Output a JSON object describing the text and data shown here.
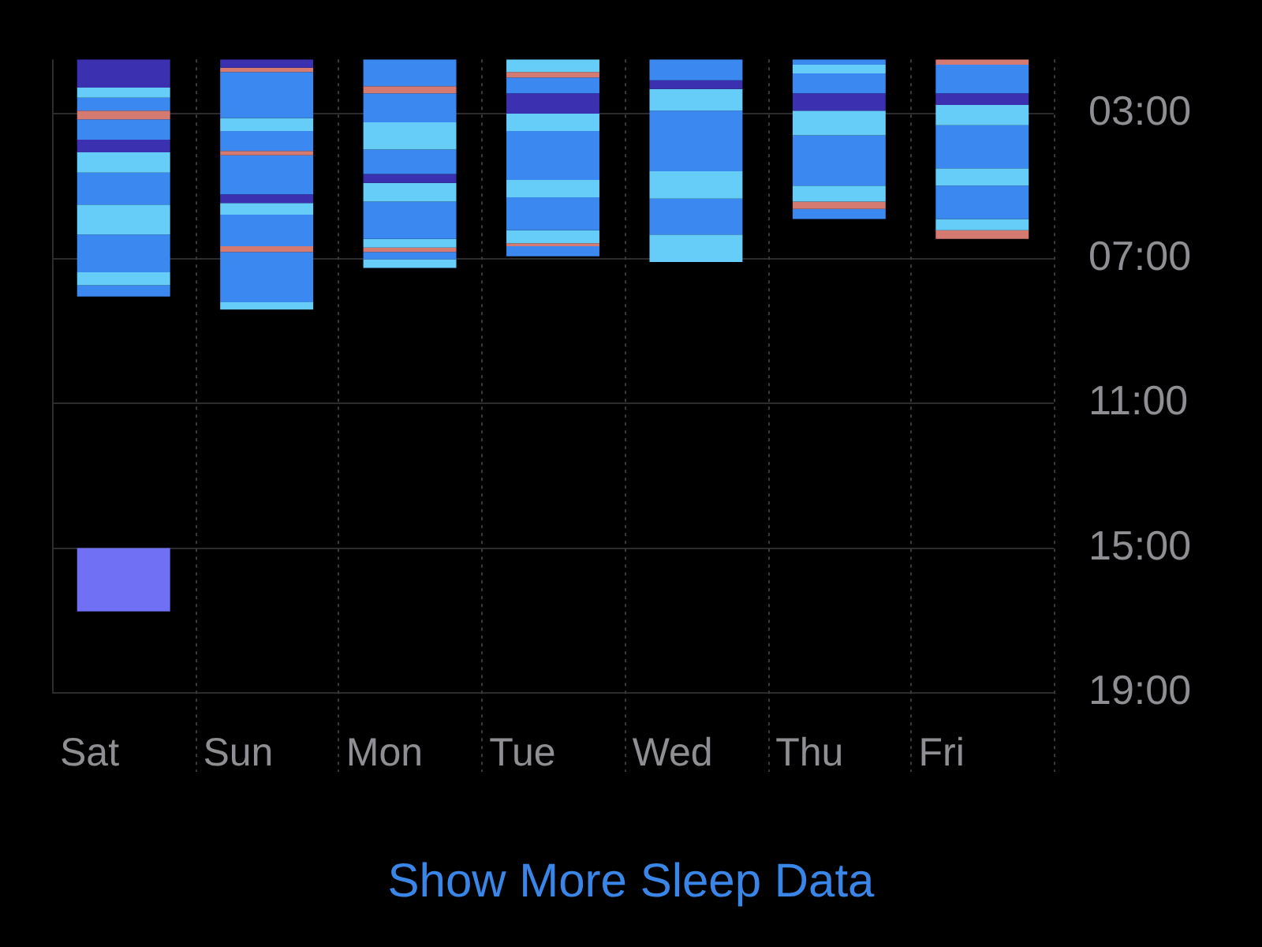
{
  "chart_data": {
    "type": "bar",
    "categories": [
      "Sat",
      "Sun",
      "Mon",
      "Tue",
      "Wed",
      "Thu",
      "Fri"
    ],
    "series": [
      {
        "base": [
          1.5,
          1.5,
          1.5,
          1.5,
          1.5,
          1.5,
          1.5
        ],
        "values": [
          0.78,
          0.23,
          0.74,
          0.35,
          0.58,
          0.15,
          0.15
        ],
        "colors": [
          "#3a30b0",
          "#3a30b0",
          "#3b88f0",
          "#66ccf8",
          "#3b88f0",
          "#3b88f0",
          "#d57a70"
        ]
      },
      {
        "base": [
          2.28,
          1.73,
          2.24,
          1.85,
          2.08,
          1.65,
          1.65
        ],
        "values": [
          0.28,
          0.12,
          0.2,
          0.15,
          0.24,
          0.24,
          0.79
        ],
        "colors": [
          "#66ccf8",
          "#d57a70",
          "#d57a70",
          "#d57a70",
          "#3a30b0",
          "#66ccf8",
          "#3b88f0"
        ]
      },
      {
        "base": [
          2.56,
          1.85,
          2.44,
          2.0,
          2.32,
          1.89,
          2.44
        ],
        "values": [
          0.36,
          1.27,
          0.8,
          0.44,
          0.6,
          0.55,
          0.32
        ],
        "colors": [
          "#3b88f0",
          "#3b88f0",
          "#3b88f0",
          "#3b88f0",
          "#66ccf8",
          "#3b88f0",
          "#3a30b0"
        ]
      },
      {
        "base": [
          2.92,
          3.12,
          3.24,
          2.44,
          2.92,
          2.44,
          2.76
        ],
        "values": [
          0.24,
          0.36,
          0.75,
          0.56,
          1.67,
          0.48,
          0.56
        ],
        "colors": [
          "#d57a70",
          "#66ccf8",
          "#66ccf8",
          "#3a30b0",
          "#3b88f0",
          "#3a30b0",
          "#66ccf8"
        ]
      },
      {
        "base": [
          3.16,
          3.48,
          3.99,
          3.0,
          4.59,
          2.92,
          3.32
        ],
        "values": [
          0.56,
          0.55,
          0.68,
          0.48,
          0.76,
          0.68,
          1.19
        ],
        "colors": [
          "#3b88f0",
          "#3b88f0",
          "#3b88f0",
          "#66ccf8",
          "#66ccf8",
          "#66ccf8",
          "#3b88f0"
        ]
      },
      {
        "base": [
          3.72,
          4.03,
          4.67,
          3.48,
          5.35,
          3.6,
          4.51
        ],
        "values": [
          0.35,
          0.12,
          0.24,
          1.35,
          0.99,
          1.39,
          0.48
        ],
        "colors": [
          "#3a30b0",
          "#d57a70",
          "#3a30b0",
          "#3b88f0",
          "#3b88f0",
          "#3b88f0",
          "#66ccf8"
        ]
      },
      {
        "base": [
          4.07,
          4.15,
          4.91,
          4.83,
          6.34,
          4.99,
          4.99
        ],
        "values": [
          0.56,
          1.08,
          0.52,
          0.48,
          0.76,
          0.44,
          0.92
        ],
        "colors": [
          "#66ccf8",
          "#3b88f0",
          "#66ccf8",
          "#66ccf8",
          "#66ccf8",
          "#66ccf8",
          "#3b88f0"
        ]
      },
      {
        "base": [
          4.63,
          5.23,
          5.43,
          5.31,
          null,
          5.43,
          5.91
        ],
        "values": [
          0.88,
          0.24,
          1.03,
          0.91,
          null,
          0.2,
          0.31
        ],
        "colors": [
          "#3b88f0",
          "#3a30b0",
          "#3b88f0",
          "#3b88f0",
          null,
          "#d57a70",
          "#66ccf8"
        ]
      },
      {
        "base": [
          5.51,
          5.47,
          6.46,
          6.22,
          null,
          5.63,
          6.22
        ],
        "values": [
          0.83,
          0.32,
          0.24,
          0.36,
          null,
          0.28,
          0.24
        ],
        "colors": [
          "#66ccf8",
          "#66ccf8",
          "#66ccf8",
          "#66ccf8",
          null,
          "#3b88f0",
          "#d57a70"
        ]
      },
      {
        "base": [
          6.34,
          5.79,
          6.7,
          6.58,
          null,
          null,
          null
        ],
        "values": [
          1.04,
          0.87,
          0.12,
          0.08,
          null,
          null,
          null
        ],
        "colors": [
          "#3b88f0",
          "#3b88f0",
          "#d57a70",
          "#d57a70",
          null,
          null,
          null
        ]
      },
      {
        "base": [
          7.38,
          6.66,
          6.82,
          6.66,
          null,
          null,
          null
        ],
        "values": [
          0.36,
          0.16,
          0.2,
          0.28,
          null,
          null,
          null
        ],
        "colors": [
          "#66ccf8",
          "#d57a70",
          "#3b88f0",
          "#3b88f0",
          null,
          null,
          null
        ]
      },
      {
        "base": [
          7.74,
          6.82,
          7.02,
          null,
          null,
          null,
          null
        ],
        "values": [
          0.31,
          1.39,
          0.24,
          null,
          null,
          null,
          null
        ],
        "colors": [
          "#3b88f0",
          "#3b88f0",
          "#66ccf8",
          null,
          null,
          null,
          null
        ]
      },
      {
        "base": [
          15.0,
          8.21,
          null,
          null,
          null,
          null,
          null
        ],
        "values": [
          1.75,
          0.2,
          null,
          null,
          null,
          null,
          null
        ],
        "colors": [
          "#7070f4",
          "#66ccf8",
          null,
          null,
          null,
          null,
          null
        ]
      }
    ],
    "ylim": [
      19,
      1.5
    ],
    "yticks": [
      {
        "value": 3,
        "label": "03:00"
      },
      {
        "value": 7,
        "label": "07:00"
      },
      {
        "value": 11,
        "label": "11:00"
      },
      {
        "value": 15,
        "label": "15:00"
      },
      {
        "value": 19,
        "label": "19:00"
      }
    ],
    "grid": true,
    "annotations": [
      "Show More Sleep Data"
    ]
  }
}
